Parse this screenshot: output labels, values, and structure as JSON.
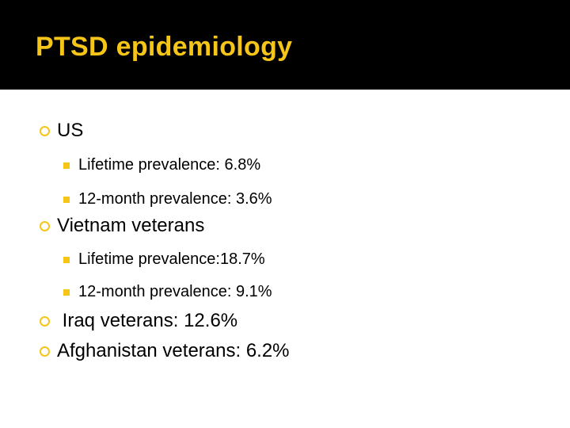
{
  "slide": {
    "title": "PTSD epidemiology",
    "accent_color": "#f5c518",
    "items": [
      {
        "label": "US",
        "bullet_icon": "ring-bullet-icon",
        "subitems": [
          {
            "label": "Lifetime prevalence: 6.8%",
            "bullet_icon": "square-bullet-icon"
          },
          {
            "label": "12-month prevalence: 3.6%",
            "bullet_icon": "square-bullet-icon"
          }
        ]
      },
      {
        "label": "Vietnam veterans",
        "bullet_icon": "ring-bullet-icon",
        "subitems": [
          {
            "label": "Lifetime prevalence:18.7%",
            "bullet_icon": "square-bullet-icon"
          },
          {
            "label": "12-month prevalence: 9.1%",
            "bullet_icon": "square-bullet-icon"
          }
        ]
      },
      {
        "label": " Iraq veterans: 12.6%",
        "bullet_icon": "ring-bullet-icon"
      },
      {
        "label": "Afghanistan veterans: 6.2%",
        "bullet_icon": "ring-bullet-icon"
      }
    ]
  }
}
